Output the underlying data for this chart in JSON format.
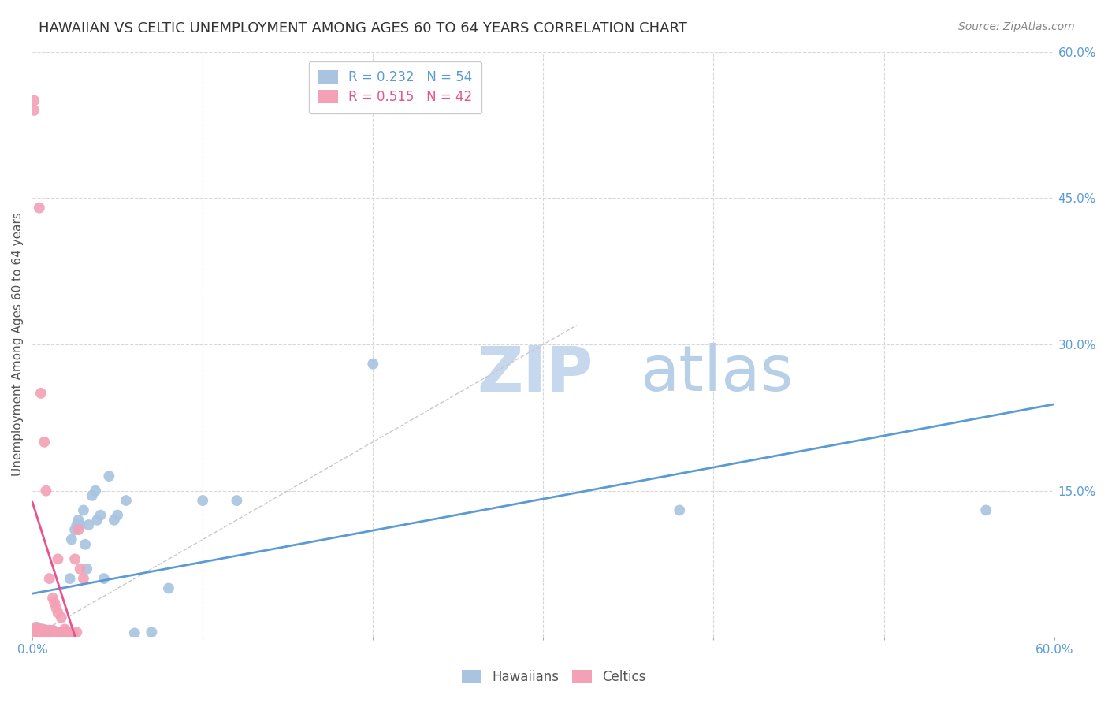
{
  "title": "HAWAIIAN VS CELTIC UNEMPLOYMENT AMONG AGES 60 TO 64 YEARS CORRELATION CHART",
  "source": "Source: ZipAtlas.com",
  "ylabel": "Unemployment Among Ages 60 to 64 years",
  "watermark_zip": "ZIP",
  "watermark_atlas": "atlas",
  "xmin": 0.0,
  "xmax": 0.6,
  "ymin": 0.0,
  "ymax": 0.6,
  "legend_r_hawaiians": "R = 0.232",
  "legend_n_hawaiians": "N = 54",
  "legend_r_celtics": "R = 0.515",
  "legend_n_celtics": "N = 42",
  "color_hawaiians": "#a8c4e0",
  "color_celtics": "#f4a0b5",
  "color_hawaiians_line": "#5b9bd5",
  "color_celtics_line": "#e8538a",
  "color_diag": "#c8c8c8",
  "hawaiians_x": [
    0.001,
    0.002,
    0.002,
    0.003,
    0.003,
    0.004,
    0.004,
    0.005,
    0.005,
    0.006,
    0.006,
    0.007,
    0.007,
    0.008,
    0.008,
    0.009,
    0.01,
    0.01,
    0.011,
    0.012,
    0.013,
    0.015,
    0.016,
    0.017,
    0.018,
    0.019,
    0.02,
    0.022,
    0.023,
    0.025,
    0.026,
    0.027,
    0.028,
    0.03,
    0.031,
    0.032,
    0.033,
    0.035,
    0.037,
    0.038,
    0.04,
    0.042,
    0.045,
    0.048,
    0.05,
    0.055,
    0.06,
    0.07,
    0.08,
    0.1,
    0.12,
    0.2,
    0.38,
    0.56
  ],
  "hawaiians_y": [
    0.005,
    0.005,
    0.008,
    0.006,
    0.01,
    0.005,
    0.008,
    0.004,
    0.006,
    0.005,
    0.008,
    0.004,
    0.006,
    0.005,
    0.007,
    0.004,
    0.005,
    0.007,
    0.004,
    0.005,
    0.006,
    0.004,
    0.005,
    0.004,
    0.005,
    0.004,
    0.005,
    0.06,
    0.1,
    0.11,
    0.115,
    0.12,
    0.115,
    0.13,
    0.095,
    0.07,
    0.115,
    0.145,
    0.15,
    0.12,
    0.125,
    0.06,
    0.165,
    0.12,
    0.125,
    0.14,
    0.004,
    0.005,
    0.05,
    0.14,
    0.14,
    0.28,
    0.13,
    0.13
  ],
  "celtics_x": [
    0.001,
    0.001,
    0.002,
    0.002,
    0.003,
    0.003,
    0.004,
    0.004,
    0.005,
    0.005,
    0.006,
    0.006,
    0.007,
    0.007,
    0.008,
    0.008,
    0.009,
    0.009,
    0.01,
    0.01,
    0.011,
    0.012,
    0.012,
    0.013,
    0.013,
    0.014,
    0.015,
    0.015,
    0.016,
    0.017,
    0.018,
    0.019,
    0.02,
    0.021,
    0.022,
    0.023,
    0.024,
    0.025,
    0.026,
    0.027,
    0.028,
    0.03
  ],
  "celtics_y": [
    0.54,
    0.55,
    0.005,
    0.01,
    0.006,
    0.008,
    0.44,
    0.005,
    0.004,
    0.25,
    0.005,
    0.008,
    0.2,
    0.005,
    0.15,
    0.005,
    0.005,
    0.007,
    0.005,
    0.06,
    0.005,
    0.007,
    0.04,
    0.005,
    0.035,
    0.03,
    0.025,
    0.08,
    0.005,
    0.02,
    0.005,
    0.008,
    0.006,
    0.005,
    0.004,
    0.003,
    0.004,
    0.08,
    0.005,
    0.11,
    0.07,
    0.06
  ],
  "grid_color": "#d8d8d8",
  "bg_color": "#ffffff",
  "title_fontsize": 13,
  "axis_label_fontsize": 11,
  "tick_fontsize": 11,
  "legend_fontsize": 12,
  "watermark_fontsize_zip": 58,
  "watermark_fontsize_atlas": 58,
  "watermark_color_zip": "#c5d8ee",
  "watermark_color_atlas": "#b8cfe8"
}
